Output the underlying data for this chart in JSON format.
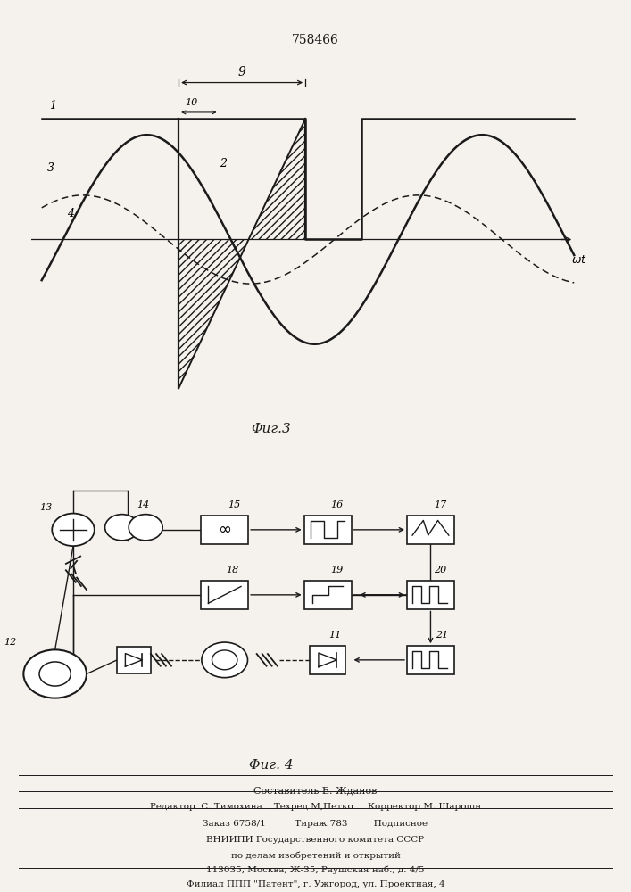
{
  "title": "758466",
  "fig3_label": "Φиг.3",
  "fig4_label": "Φиг. 4",
  "footer_lines": [
    "Составитель Е. Жданов",
    "Редактор  С. Тимохина    Техред М,Петко     Корректор М. Шарошн",
    "Заказ 6758/1          Тираж 783         Подписное",
    "ВНИИПИ Государственного комитета СССР",
    "по делам изобретений и открытий",
    "113035, Москва, Ж-35, Раушская наб., д. 4/5",
    "Филиал ППП \"Патент\", г. Ужгород, ул. Проектная, 4"
  ],
  "bg_color": "#f5f2ed",
  "line_color": "#1a1a1a"
}
